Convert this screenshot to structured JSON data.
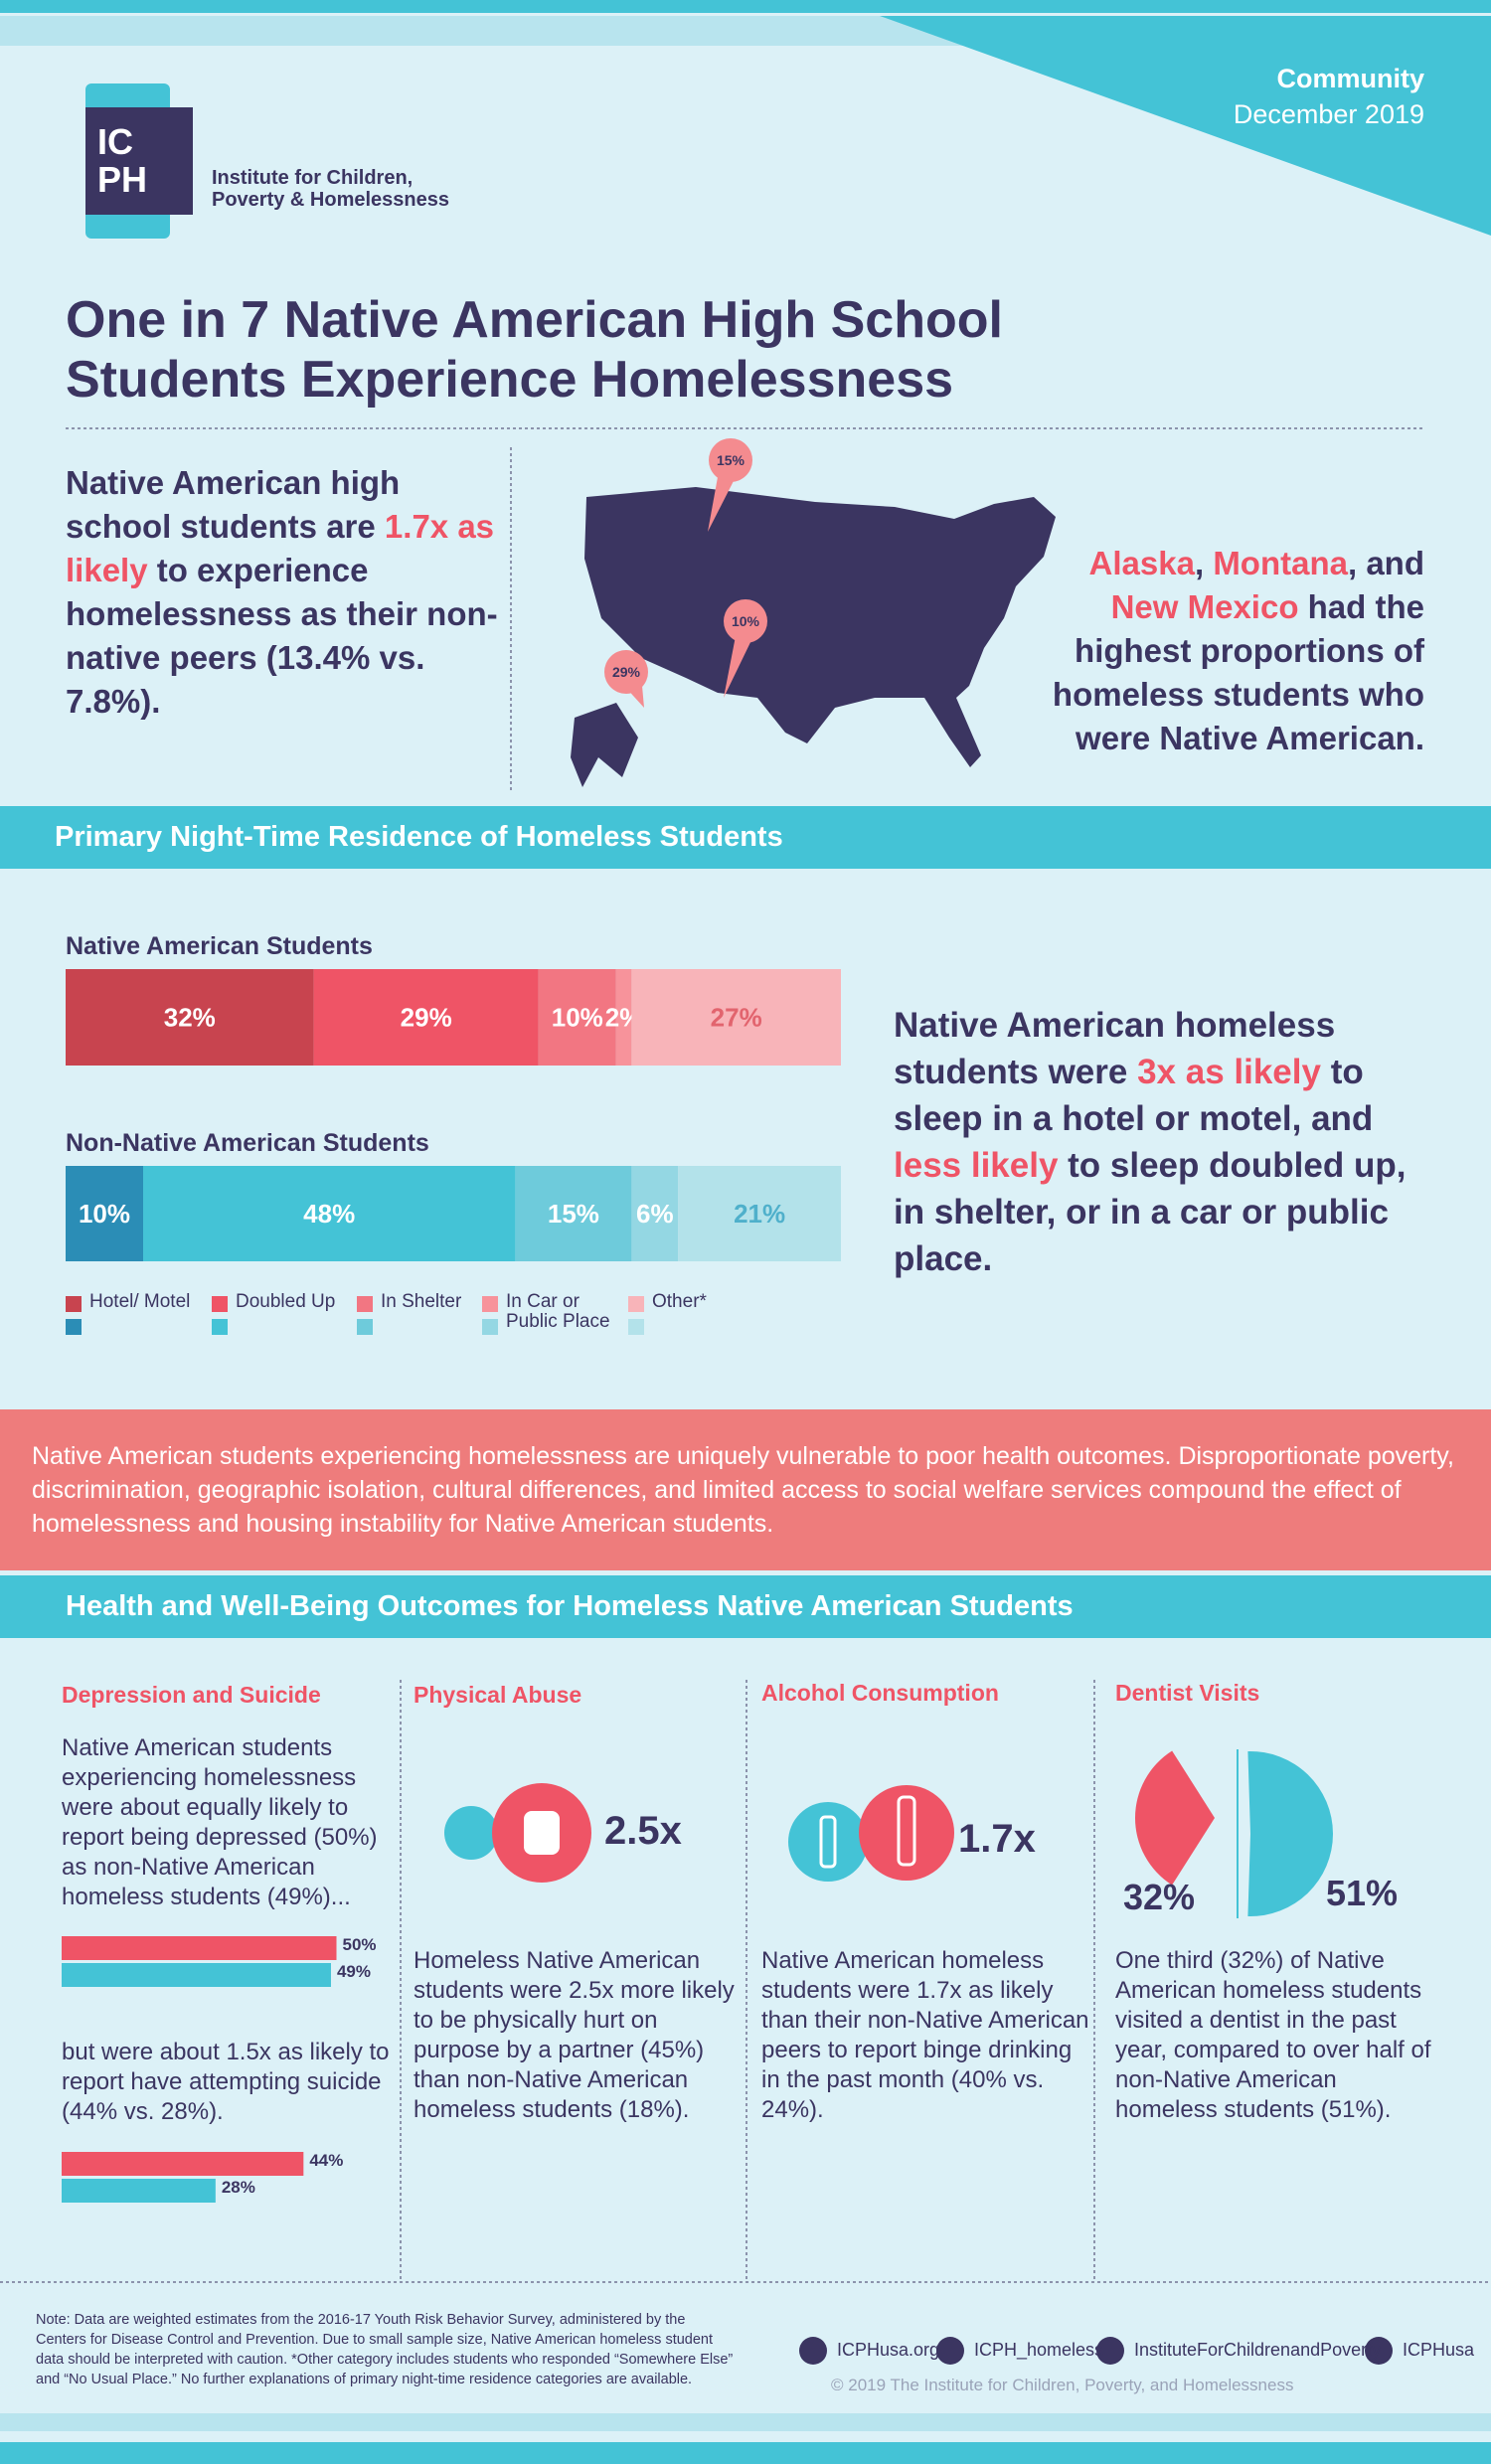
{
  "header": {
    "category": "Community",
    "date": "December 2019",
    "logo": [
      "IC",
      "PH"
    ],
    "org": [
      "Institute for Children,",
      "Poverty & Homelessness"
    ]
  },
  "title": [
    "One in 7 Native American High School",
    "Students Experience Homelessness"
  ],
  "intro": {
    "parts": [
      {
        "text": "Native American high school students are "
      },
      {
        "text": "1.7x as likely",
        "em": true
      },
      {
        "text": " to experience homelessness as their non-native peers (13.4% vs. 7.8%)."
      }
    ]
  },
  "map": {
    "pins": [
      "15%",
      "10%",
      "29%"
    ],
    "caption": {
      "parts": [
        {
          "text": "Alaska",
          "em": true
        },
        {
          "text": ", "
        },
        {
          "text": "Montana",
          "em": true
        },
        {
          "text": ", and "
        },
        {
          "text": "New Mexico",
          "em": true
        },
        {
          "text": " had the highest proportions of homeless students who were Native American."
        }
      ]
    }
  },
  "residence": {
    "title": "Primary Night-Time Residence of Homeless Students",
    "xlim": [
      0,
      100
    ],
    "categories": [
      "Hotel/ Motel",
      "Doubled Up",
      "In Shelter",
      "In Car or Public Place",
      "Other*"
    ],
    "groups": [
      {
        "name": "Native American Students",
        "values": [
          32,
          29,
          10,
          2,
          27
        ],
        "value_labels": [
          "32%",
          "29%",
          "10%",
          "2%",
          "27%"
        ],
        "colors": [
          "#c8444f",
          "#ef5466",
          "#f27682",
          "#f7939b",
          "#f8b4b9"
        ],
        "label_colors": [
          "#ffffff",
          "#ffffff",
          "#ffffff",
          "#ffffff",
          "#e2646e"
        ]
      },
      {
        "name": "Non-Native American Students",
        "values": [
          10,
          48,
          15,
          6,
          21
        ],
        "value_labels": [
          "10%",
          "48%",
          "15%",
          "6%",
          "21%"
        ],
        "colors": [
          "#2b8db6",
          "#44c3d6",
          "#6ecbdb",
          "#94d7e3",
          "#b3e2ea"
        ],
        "label_colors": [
          "#ffffff",
          "#ffffff",
          "#ffffff",
          "#ffffff",
          "#4fb0cb"
        ]
      }
    ],
    "caption": {
      "parts": [
        {
          "text": "Native American homeless students were "
        },
        {
          "text": "3x as likely",
          "em": true
        },
        {
          "text": " to sleep in a hotel or motel, and "
        },
        {
          "text": "less likely",
          "em": true
        },
        {
          "text": " to sleep doubled up, in shelter, or in a car or public place."
        }
      ]
    }
  },
  "callout": "Native American students experiencing homelessness are uniquely vulnerable to poor health outcomes. Disproportionate poverty, discrimination, geographic isolation, cultural differences, and limited access to social welfare services compound the effect of homelessness and housing instability for Native American students.",
  "health": {
    "title": "Health and Well-Being Outcomes for Homeless Native American Students",
    "sections": [
      {
        "heading": "Depression and Suicide",
        "texts": [
          "Native American students experiencing homelessness were about equally likely to report being depressed (50%) as non-Native American homeless students (49%)...",
          "but were about 1.5x as likely to report have attempting suicide (44% vs. 28%)."
        ],
        "xlim": [
          0,
          100
        ],
        "colors": [
          "#ef5466",
          "#44c3d6"
        ],
        "bars": [
          {
            "values": [
              50,
              49
            ],
            "value_labels": [
              "50%",
              "49%"
            ]
          },
          {
            "values": [
              44,
              28
            ],
            "value_labels": [
              "44%",
              "28%"
            ]
          }
        ]
      },
      {
        "heading": "Physical Abuse",
        "stat": "2.5x",
        "text": "Homeless Native American students were 2.5x more likely to be physically hurt on purpose by a partner (45%) than non-Native American homeless students (18%)."
      },
      {
        "heading": "Alcohol Consumption",
        "stat": "1.7x",
        "text": "Native American homeless students were 1.7x as likely than their non-Native American peers to report binge drinking in the past month (40% vs. 24%)."
      },
      {
        "heading": "Dentist Visits",
        "values": [
          32,
          51
        ],
        "value_labels": [
          "32%",
          "51%"
        ],
        "colors": [
          "#ef5466",
          "#44c3d6"
        ],
        "text": "One third (32%) of Native American homeless students visited a dentist in the past year, compared to over half of non-Native American homeless students (51%)."
      }
    ]
  },
  "footer": {
    "note": "Note: Data are weighted estimates from the 2016-17 Youth Risk Behavior Survey, administered by the Centers for Disease Control and Prevention. Due to small sample size, Native American homeless student data should be interpreted with caution. *Other category includes students who responded “Somewhere Else” and “No Usual Place.” No further explanations of primary night-time residence categories are available.",
    "social": [
      "ICPHusa.org",
      "ICPH_homeless",
      "InstituteForChildrenandPoverty",
      "ICPHusa"
    ],
    "copyright": "© 2019 The Institute for Children, Poverty, and Homelessness"
  }
}
